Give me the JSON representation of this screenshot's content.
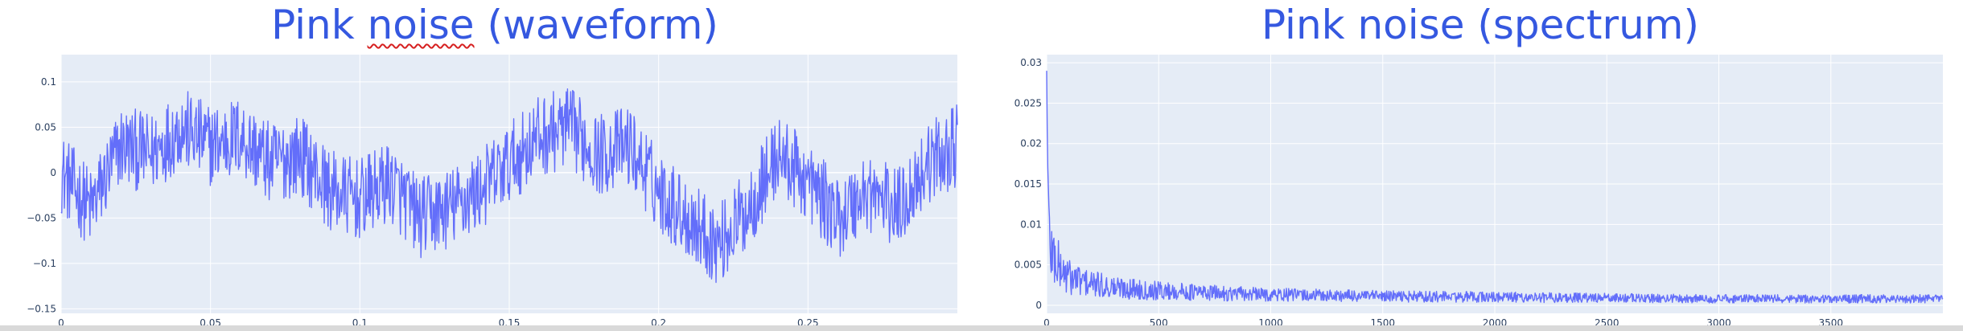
{
  "titles": {
    "left_prefix": "Pink ",
    "left_word": "noise",
    "left_suffix": " (waveform)",
    "right": "Pink noise (spectrum)"
  },
  "colors": {
    "line": "#636efa",
    "plot_bg": "#e5ecf6",
    "grid": "#ffffff",
    "title": "#3558e0"
  },
  "chart_data": [
    {
      "type": "line",
      "title": "Pink noise (waveform)",
      "xlabel": "",
      "ylabel": "",
      "xlim": [
        0,
        0.3
      ],
      "ylim": [
        -0.155,
        0.13
      ],
      "xticks": [
        0,
        0.05,
        0.1,
        0.15,
        0.2,
        0.25
      ],
      "xtick_labels": [
        "0",
        "0.05",
        "0.1",
        "0.15",
        "0.2",
        "0.25"
      ],
      "yticks": [
        -0.15,
        -0.1,
        -0.05,
        0,
        0.05,
        0.1
      ],
      "ytick_labels": [
        "−0.15",
        "−0.1",
        "−0.05",
        "0",
        "0.05",
        "0.1"
      ],
      "grid": true,
      "series": [
        {
          "x": [
            0,
            0.01,
            0.02,
            0.03,
            0.04,
            0.05,
            0.06,
            0.07,
            0.08,
            0.09,
            0.1,
            0.11,
            0.12,
            0.13,
            0.14,
            0.15,
            0.16,
            0.17,
            0.18,
            0.19,
            0.2,
            0.21,
            0.22,
            0.23,
            0.24,
            0.25,
            0.26,
            0.27,
            0.28,
            0.29,
            0.3
          ],
          "values": [
            0,
            -0.04,
            0.03,
            0.02,
            0.05,
            0.03,
            0.04,
            0.01,
            0.02,
            -0.02,
            -0.03,
            -0.01,
            -0.05,
            -0.04,
            -0.02,
            0.01,
            0.04,
            0.05,
            0.02,
            0.03,
            -0.02,
            -0.05,
            -0.08,
            -0.04,
            0.02,
            -0.01,
            -0.05,
            -0.02,
            -0.04,
            0.01,
            0.03
          ]
        }
      ]
    },
    {
      "type": "line",
      "title": "Pink noise (spectrum)",
      "xlabel": "",
      "ylabel": "",
      "xlim": [
        0,
        4000
      ],
      "ylim": [
        -0.001,
        0.031
      ],
      "xticks": [
        0,
        500,
        1000,
        1500,
        2000,
        2500,
        3000,
        3500
      ],
      "xtick_labels": [
        "0",
        "500",
        "1000",
        "1500",
        "2000",
        "2500",
        "3000",
        "3500"
      ],
      "yticks": [
        0,
        0.005,
        0.01,
        0.015,
        0.02,
        0.025,
        0.03
      ],
      "ytick_labels": [
        "0",
        "0.005",
        "0.01",
        "0.015",
        "0.02",
        "0.025",
        "0.03"
      ],
      "grid": true,
      "series": [
        {
          "x": [
            0,
            5,
            10,
            20,
            40,
            60,
            100,
            150,
            200,
            300,
            500,
            750,
            1000,
            1500,
            2000,
            2500,
            3000,
            3500,
            4000
          ],
          "values": [
            0.029,
            0.014,
            0.009,
            0.007,
            0.0055,
            0.0045,
            0.0035,
            0.003,
            0.0026,
            0.0022,
            0.0018,
            0.0015,
            0.0013,
            0.0011,
            0.001,
            0.0009,
            0.0008,
            0.0008,
            0.0008
          ]
        }
      ]
    }
  ]
}
